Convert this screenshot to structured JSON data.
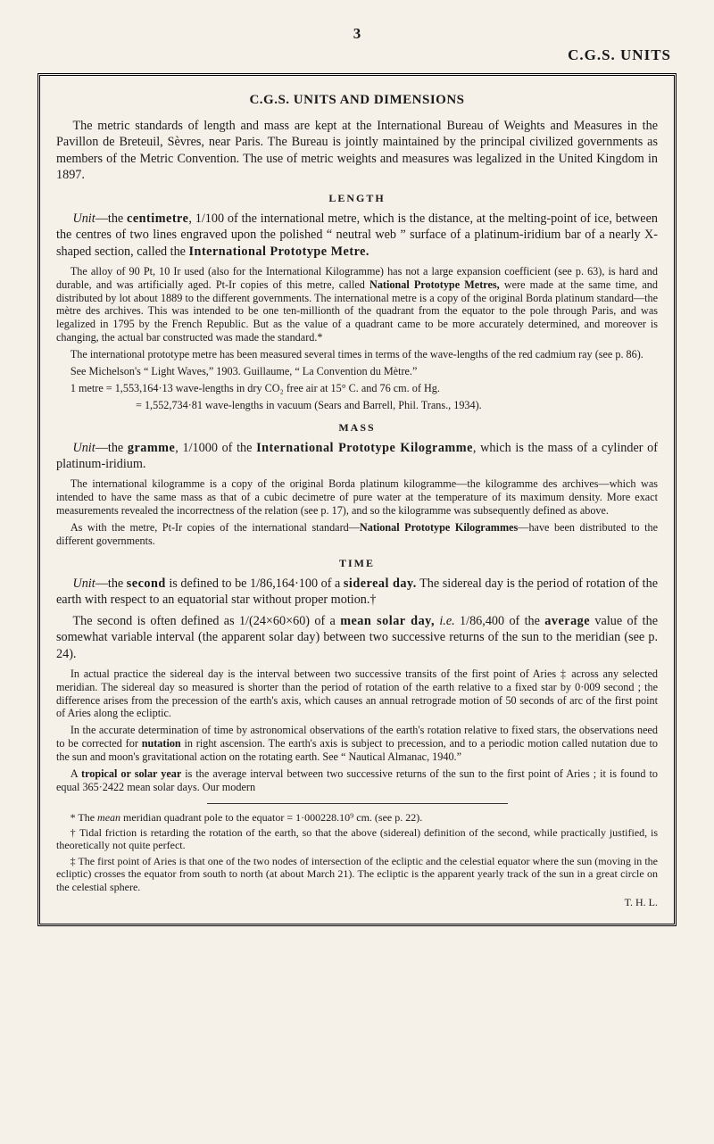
{
  "page_number": "3",
  "header": "C.G.S. UNITS",
  "title": "C.G.S. UNITS AND DIMENSIONS",
  "intro": "The metric standards of length and mass are kept at the International Bureau of Weights and Measures in the Pavillon de Breteuil, Sèvres, near Paris. The Bureau is jointly maintained by the principal civilized governments as members of the Metric Convention. The use of metric weights and measures was legalized in the United Kingdom in 1897.",
  "length": {
    "heading": "LENGTH",
    "p1_a": "Unit",
    "p1_b": "—the ",
    "p1_c": "centimetre",
    "p1_d": ", 1/100 of the international metre, which is the distance, at the melting-point of ice, between the centres of two lines engraved upon the polished “ neutral web ” surface of a platinum-iridium bar of a nearly X-shaped section, called the ",
    "p1_e": "International Prototype Metre.",
    "s1_a": "The alloy of 90 Pt, 10 Ir used (also for the International Kilogramme) has not a large expansion coefficient (see p. 63), is hard and durable, and was artificially aged. Pt-Ir copies of this metre, called ",
    "s1_b": "National Prototype Metres,",
    "s1_c": " were made at the same time, and distributed by lot about 1889 to the different governments. The international metre is a copy of the original Borda platinum standard—the mètre des archives. This was intended to be one ten-millionth of the quadrant from the equator to the pole through Paris, and was legalized in 1795 by the French Republic. But as the value of a quadrant came to be more accurately determined, and moreover is changing, the actual bar constructed was made the standard.*",
    "s2": "The international prototype metre has been measured several times in terms of the wave-lengths of the red cadmium ray (see p. 86).",
    "s3": "See Michelson's “ Light Waves,” 1903. Guillaume, “ La Convention du Mètre.”",
    "s4": "1 metre = 1,553,164·13 wave-lengths in dry CO₂ free air at 15° C. and 76 cm. of Hg.",
    "s5": "= 1,552,734·81 wave-lengths in vacuum (Sears and Barrell, Phil. Trans., 1934)."
  },
  "mass": {
    "heading": "MASS",
    "p1_a": "Unit",
    "p1_b": "—the ",
    "p1_c": "gramme",
    "p1_d": ", 1/1000 of the ",
    "p1_e": "International Prototype Kilogramme",
    "p1_f": ", which is the mass of a cylinder of platinum-iridium.",
    "s1": "The international kilogramme is a copy of the original Borda platinum kilogramme—the kilogramme des archives—which was intended to have the same mass as that of a cubic decimetre of pure water at the temperature of its maximum density. More exact measurements revealed the incorrectness of the relation (see p. 17), and so the kilogramme was subsequently defined as above.",
    "s2_a": "As with the metre, Pt-Ir copies of the international standard—",
    "s2_b": "National Prototype Kilogrammes",
    "s2_c": "—have been distributed to the different governments."
  },
  "time": {
    "heading": "TIME",
    "p1_a": "Unit",
    "p1_b": "—the ",
    "p1_c": "second",
    "p1_d": " is defined to be 1/86,164·100 of a ",
    "p1_e": "sidereal day.",
    "p1_f": " The sidereal day is the period of rotation of the earth with respect to an equatorial star without proper motion.†",
    "p2_a": "The second is often defined as 1/(24×60×60) of a ",
    "p2_b": "mean solar day,",
    "p2_c": " i.e.",
    "p2_d": " 1/86,400 of the ",
    "p2_e": "average",
    "p2_f": " value of the somewhat variable interval (the apparent solar day) between two successive returns of the sun to the meridian (see p. 24).",
    "s1": "In actual practice the sidereal day is the interval between two successive transits of the first point of Aries ‡ across any selected meridian. The sidereal day so measured is shorter than the period of rotation of the earth relative to a fixed star by 0·009 second ; the difference arises from the precession of the earth's axis, which causes an annual retrograde motion of 50 seconds of arc of the first point of Aries along the ecliptic.",
    "s2_a": "In the accurate determination of time by astronomical observations of the earth's rotation relative to fixed stars, the observations need to be corrected for ",
    "s2_b": "nutation",
    "s2_c": " in right ascension. The earth's axis is subject to precession, and to a periodic motion called nutation due to the sun and moon's gravitational action on the rotating earth. See “ Nautical Almanac, 1940.”",
    "s3_a": "A ",
    "s3_b": "tropical or solar year",
    "s3_c": " is the average interval between two successive returns of the sun to the first point of Aries ; it is found to equal 365·2422 mean solar days. Our modern"
  },
  "footnotes": {
    "f1_a": "* The ",
    "f1_b": "mean",
    "f1_c": " meridian quadrant pole to the equator = 1·000228.10⁹ cm. (see p. 22).",
    "f2": "† Tidal friction is retarding the rotation of the earth, so that the above (sidereal) definition of the second, while practically justified, is theoretically not quite perfect.",
    "f3": "‡ The first point of Aries is that one of the two nodes of intersection of the ecliptic and the celestial equator where the sun (moving in the ecliptic) crosses the equator from south to north (at about March 21). The ecliptic is the apparent yearly track of the sun in a great circle on the celestial sphere.",
    "sig": "T. H. L."
  }
}
